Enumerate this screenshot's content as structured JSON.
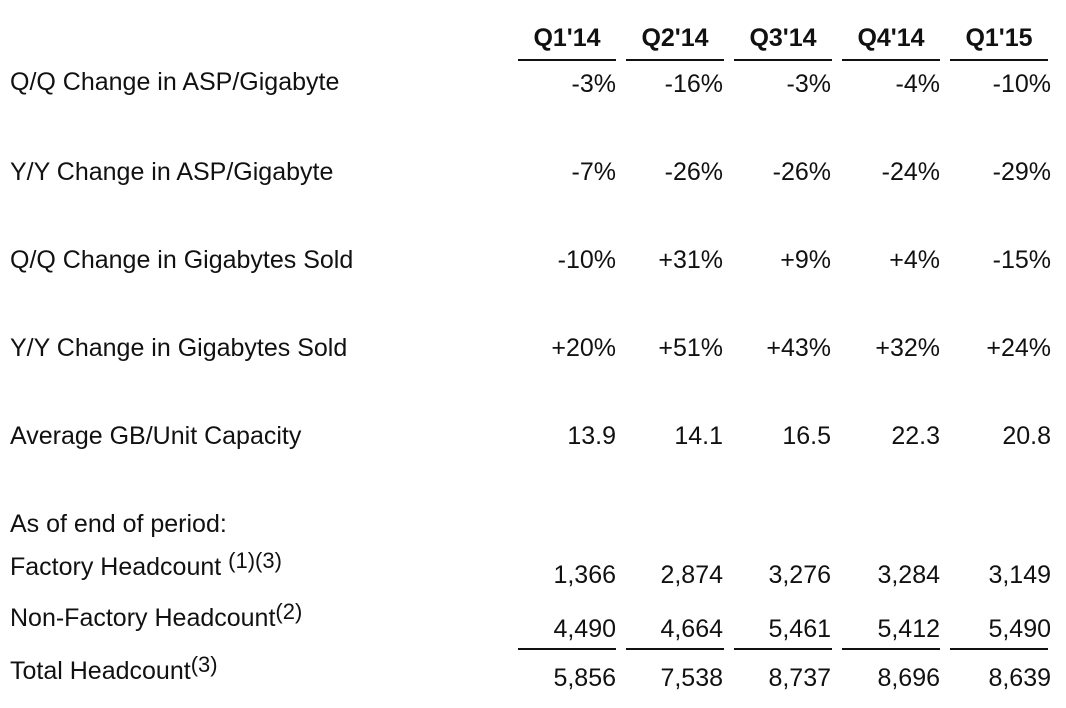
{
  "headers": [
    "Q1'14",
    "Q2'14",
    "Q3'14",
    "Q4'14",
    "Q1'15"
  ],
  "rows": [
    {
      "label": "Q/Q Change in ASP/Gigabyte",
      "sup": "",
      "values": [
        "-3%",
        "-16%",
        "-3%",
        "-4%",
        "-10%"
      ]
    },
    {
      "label": "Y/Y Change in ASP/Gigabyte",
      "sup": "",
      "values": [
        "-7%",
        "-26%",
        "-26%",
        "-24%",
        "-29%"
      ]
    },
    {
      "label": "Q/Q Change in Gigabytes Sold",
      "sup": "",
      "values": [
        "-10%",
        "+31%",
        "+9%",
        "+4%",
        "-15%"
      ]
    },
    {
      "label": "Y/Y Change in Gigabytes Sold",
      "sup": "",
      "values": [
        "+20%",
        "+51%",
        "+43%",
        "+32%",
        "+24%"
      ]
    },
    {
      "label": "Average GB/Unit Capacity",
      "sup": "",
      "values": [
        "13.9",
        "14.1",
        "16.5",
        "22.3",
        "20.8"
      ]
    }
  ],
  "section_label": "As of end of period:",
  "headcount_rows": [
    {
      "label": "Factory Headcount ",
      "sup": "(1)(3)",
      "values": [
        "1,366",
        "2,874",
        "3,276",
        "3,284",
        "3,149"
      ]
    },
    {
      "label": "Non-Factory Headcount",
      "sup": "(2)",
      "values": [
        "4,490",
        "4,664",
        "5,461",
        "5,412",
        "5,490"
      ]
    },
    {
      "label": "Total Headcount",
      "sup": "(3)",
      "values": [
        "5,856",
        "7,538",
        "8,737",
        "8,696",
        "8,639"
      ]
    }
  ]
}
